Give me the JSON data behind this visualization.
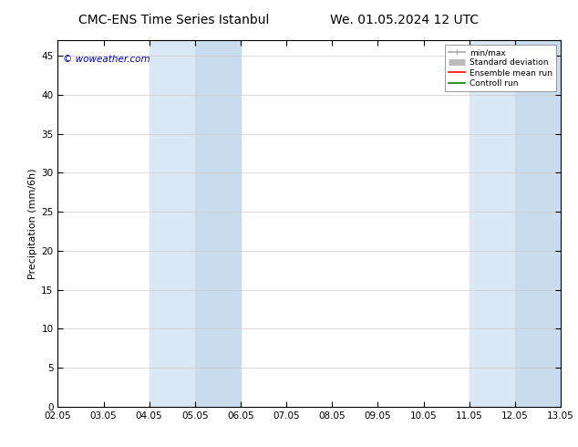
{
  "title_left": "CMC-ENS Time Series Istanbul",
  "title_right": "We. 01.05.2024 12 UTC",
  "ylabel": "Precipitation (mm/6h)",
  "watermark": "© woweather.com",
  "ylim": [
    0,
    47
  ],
  "yticks": [
    0,
    5,
    10,
    15,
    20,
    25,
    30,
    35,
    40,
    45
  ],
  "xtick_labels": [
    "02.05",
    "03.05",
    "04.05",
    "05.05",
    "06.05",
    "07.05",
    "08.05",
    "09.05",
    "10.05",
    "11.05",
    "12.05",
    "13.05"
  ],
  "shaded_bands": [
    {
      "xmin": 2,
      "xmax": 3,
      "color": "#ddeeff"
    },
    {
      "xmin": 3,
      "xmax": 4,
      "color": "#cce5ff"
    },
    {
      "xmin": 9,
      "xmax": 10,
      "color": "#ddeeff"
    },
    {
      "xmin": 10,
      "xmax": 11,
      "color": "#cce5ff"
    }
  ],
  "legend_items": [
    {
      "label": "min/max",
      "color": "#aaaaaa",
      "lw": 1.2,
      "style": "line_with_caps"
    },
    {
      "label": "Standard deviation",
      "color": "#bbbbbb",
      "lw": 5,
      "style": "thick"
    },
    {
      "label": "Ensemble mean run",
      "color": "#ff0000",
      "lw": 1.2,
      "style": "line"
    },
    {
      "label": "Controll run",
      "color": "#008800",
      "lw": 1.2,
      "style": "line"
    }
  ],
  "background_color": "#ffffff",
  "plot_bg_color": "#ffffff",
  "grid_color": "#cccccc",
  "border_color": "#000000",
  "watermark_color": "#0000bb",
  "watermark_fontsize": 7.5,
  "title_fontsize": 10,
  "tick_fontsize": 7.5,
  "ylabel_fontsize": 8
}
